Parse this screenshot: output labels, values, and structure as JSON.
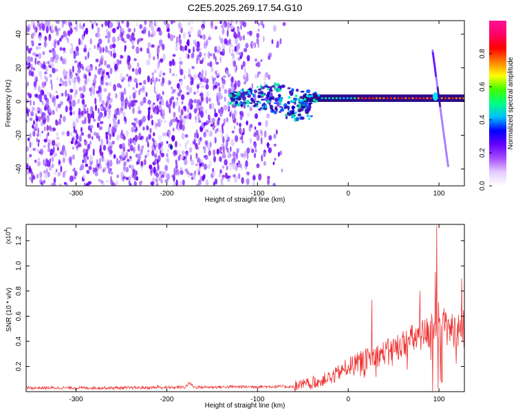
{
  "title": "C2E5.2025.269.17.54.G10",
  "chart_data": [
    {
      "type": "heatmap",
      "xlabel": "Height of straight line (km)",
      "ylabel": "Frequency (Hz)",
      "xlim": [
        -355,
        128
      ],
      "ylim": [
        -50,
        48
      ],
      "x_ticks": [
        -300,
        -200,
        -100,
        0,
        100
      ],
      "y_ticks": [
        -40,
        -20,
        0,
        20,
        40
      ],
      "colorbar": {
        "label": "Normalized spectral amplitude",
        "range": [
          0,
          1
        ],
        "ticks": [
          "0.0",
          "0.2",
          "0.4",
          "0.6",
          "0.8"
        ],
        "colors": [
          "#ffffff",
          "#e6ccff",
          "#a64dff",
          "#6600ff",
          "#0000ff",
          "#00bfff",
          "#00ff80",
          "#40ff00",
          "#ffff00",
          "#ff8000",
          "#ff0000",
          "#ff0066",
          "#ff1493"
        ]
      },
      "features": {
        "noise_region_x": [
          -355,
          -70
        ],
        "sparse_noise_x": [
          -125,
          -75
        ],
        "carrier_line": {
          "x": [
            -120,
            128
          ],
          "frequency": 2,
          "peak_amplitude": 1.0
        },
        "diagonal_trail": {
          "x_start": 93,
          "f_start": 30,
          "x_end": 110,
          "f_end": -38
        },
        "isolated_dot": {
          "x": -195,
          "f": -27
        }
      }
    },
    {
      "type": "line",
      "xlabel": "Height of straight line (km)",
      "ylabel": "SNR (10 * v/v)",
      "scale_label": "(x10",
      "scale_exponent": "4",
      "xlim": [
        -355,
        128
      ],
      "ylim": [
        0,
        1.33
      ],
      "x_ticks": [
        -300,
        -200,
        -100,
        0,
        100
      ],
      "y_ticks": [
        "0.2",
        "0.4",
        "0.6",
        "0.8",
        "1.0",
        "1.2"
      ],
      "series": [
        {
          "color": "#ee3030",
          "profile_x": [
            -355,
            -250,
            -180,
            -175,
            -170,
            -100,
            -60,
            -45,
            -30,
            -15,
            0,
            20,
            40,
            60,
            80,
            90,
            95,
            98,
            100,
            110,
            120,
            128
          ],
          "profile_y": [
            0.03,
            0.03,
            0.035,
            0.07,
            0.035,
            0.04,
            0.04,
            0.06,
            0.09,
            0.13,
            0.2,
            0.26,
            0.31,
            0.38,
            0.45,
            0.48,
            0.55,
            1.32,
            0.58,
            0.5,
            0.48,
            0.52
          ],
          "spikes": [
            {
              "x": 97.5,
              "y": 1.32
            },
            {
              "x": 96,
              "y": 0.95
            },
            {
              "x": 26,
              "y": 0.73
            },
            {
              "x": 79,
              "y": 0.8
            },
            {
              "x": 125,
              "y": 0.9
            },
            {
              "x": -176,
              "y": 0.075
            },
            {
              "x": -210,
              "y": 0.055
            }
          ]
        }
      ]
    }
  ]
}
